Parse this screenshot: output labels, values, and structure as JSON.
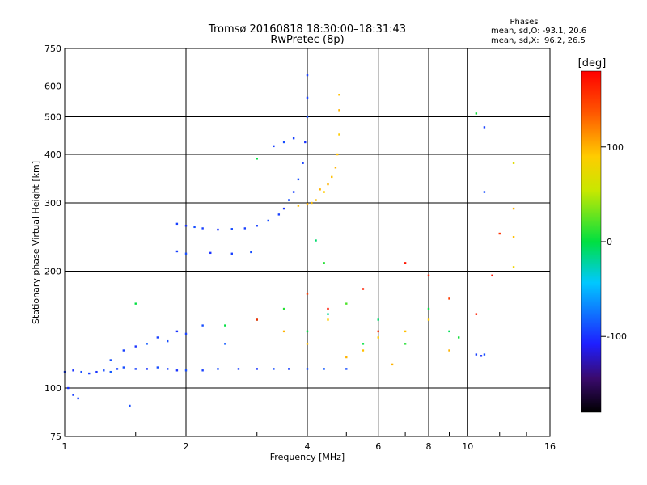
{
  "header": {
    "title": "Tromsø 20160818 18:30:00–18:31:43",
    "subtitle": "RwPretec (8p)"
  },
  "stats": {
    "title": "Phases",
    "line1": "mean, sd,O: -93.1, 20.6",
    "line2": "mean, sd,X:  96.2, 26.5"
  },
  "colorbar": {
    "unit_label": "[deg]",
    "ticks": [
      {
        "label": "100",
        "value": 100
      },
      {
        "label": "0",
        "value": 0
      },
      {
        "label": "-100",
        "value": -100
      }
    ]
  },
  "colors": {
    "gridline": "#000000",
    "o_mode": "#1030e0",
    "x_mode": "#e8e000"
  },
  "chart_data": {
    "type": "scatter",
    "xlabel": "Frequency [MHz]",
    "ylabel": "Stationary phase Virtual Height [km]",
    "x_scale": "log",
    "y_scale": "log",
    "xlim": [
      1,
      16
    ],
    "ylim": [
      75,
      750
    ],
    "grid": true,
    "x_ticks": [
      {
        "value": 1,
        "label": "1"
      },
      {
        "value": 2,
        "label": "2"
      },
      {
        "value": 4,
        "label": "4"
      },
      {
        "value": 6,
        "label": "6"
      },
      {
        "value": 8,
        "label": "8"
      },
      {
        "value": 10,
        "label": "10"
      },
      {
        "value": 16,
        "label": "16"
      }
    ],
    "y_ticks": [
      {
        "value": 75,
        "label": "75"
      },
      {
        "value": 100,
        "label": "100"
      },
      {
        "value": 200,
        "label": "200"
      },
      {
        "value": 300,
        "label": "300"
      },
      {
        "value": 400,
        "label": "400"
      },
      {
        "value": 500,
        "label": "500"
      },
      {
        "value": 600,
        "label": "600"
      },
      {
        "value": 750,
        "label": "750"
      }
    ],
    "colorbar_range": [
      -180,
      180
    ],
    "series": [
      {
        "points": [
          [
            1.0,
            110,
            -95
          ],
          [
            1.05,
            111,
            -100
          ],
          [
            1.1,
            110,
            -90
          ],
          [
            1.15,
            109,
            -95
          ],
          [
            1.2,
            110,
            -100
          ],
          [
            1.25,
            111,
            -90
          ],
          [
            1.3,
            110,
            -85
          ],
          [
            1.35,
            112,
            -95
          ],
          [
            1.4,
            113,
            -90
          ],
          [
            1.5,
            112,
            -95
          ],
          [
            1.6,
            112,
            -100
          ],
          [
            1.7,
            113,
            -90
          ],
          [
            1.8,
            112,
            -95
          ],
          [
            1.9,
            111,
            -100
          ],
          [
            2.0,
            111,
            -90
          ],
          [
            2.2,
            111,
            -95
          ],
          [
            2.4,
            112,
            -90
          ],
          [
            2.7,
            112,
            -95
          ],
          [
            3.0,
            112,
            -100
          ],
          [
            3.3,
            112,
            -90
          ],
          [
            3.6,
            112,
            -95
          ],
          [
            4.0,
            112,
            -90
          ],
          [
            4.4,
            112,
            -85
          ],
          [
            5.0,
            112,
            -90
          ],
          [
            1.02,
            100,
            -100
          ],
          [
            1.05,
            96,
            -95
          ],
          [
            1.08,
            94,
            -95
          ],
          [
            1.45,
            90,
            -90
          ],
          [
            1.3,
            118,
            -90
          ],
          [
            1.4,
            125,
            -95
          ],
          [
            1.5,
            128,
            -100
          ],
          [
            1.6,
            130,
            -85
          ],
          [
            1.7,
            135,
            -95
          ],
          [
            1.8,
            132,
            -90
          ],
          [
            1.9,
            140,
            -100
          ],
          [
            2.0,
            138,
            -95
          ],
          [
            2.2,
            145,
            -90
          ],
          [
            2.5,
            130,
            -85
          ],
          [
            1.9,
            265,
            -95
          ],
          [
            2.0,
            262,
            -100
          ],
          [
            2.1,
            260,
            -90
          ],
          [
            2.2,
            258,
            -95
          ],
          [
            2.4,
            256,
            -100
          ],
          [
            2.6,
            257,
            -90
          ],
          [
            2.8,
            258,
            -95
          ],
          [
            3.0,
            262,
            -95
          ],
          [
            3.2,
            270,
            -90
          ],
          [
            3.4,
            280,
            -95
          ],
          [
            3.5,
            290,
            -100
          ],
          [
            3.6,
            305,
            -90
          ],
          [
            3.7,
            320,
            -95
          ],
          [
            3.8,
            345,
            -90
          ],
          [
            3.9,
            380,
            -95
          ],
          [
            3.95,
            430,
            -100
          ],
          [
            4.0,
            500,
            -90
          ],
          [
            4.0,
            560,
            -95
          ],
          [
            4.0,
            640,
            -95
          ],
          [
            1.9,
            225,
            -95
          ],
          [
            2.0,
            222,
            -90
          ],
          [
            2.3,
            223,
            -100
          ],
          [
            2.6,
            222,
            -95
          ],
          [
            2.9,
            224,
            -90
          ],
          [
            3.3,
            420,
            -95
          ],
          [
            3.5,
            430,
            -90
          ],
          [
            3.7,
            440,
            -95
          ],
          [
            10.5,
            122,
            -95
          ],
          [
            10.8,
            121,
            -100
          ],
          [
            11.0,
            122,
            -90
          ],
          [
            11.0,
            470,
            -95
          ],
          [
            11.0,
            320,
            -90
          ]
        ]
      },
      {
        "points": [
          [
            3.8,
            295,
            95
          ],
          [
            4.0,
            298,
            100
          ],
          [
            4.2,
            305,
            95
          ],
          [
            4.4,
            320,
            90
          ],
          [
            4.5,
            335,
            100
          ],
          [
            4.6,
            350,
            95
          ],
          [
            4.7,
            370,
            100
          ],
          [
            4.75,
            400,
            95
          ],
          [
            4.8,
            450,
            90
          ],
          [
            4.8,
            520,
            100
          ],
          [
            4.8,
            570,
            95
          ],
          [
            4.3,
            325,
            100
          ],
          [
            4.1,
            300,
            95
          ],
          [
            3.5,
            140,
            100
          ],
          [
            4.0,
            130,
            95
          ],
          [
            4.5,
            150,
            90
          ],
          [
            5.0,
            120,
            100
          ],
          [
            5.5,
            125,
            95
          ],
          [
            6.0,
            135,
            90
          ],
          [
            6.5,
            115,
            100
          ],
          [
            7.0,
            140,
            95
          ],
          [
            8.0,
            150,
            90
          ],
          [
            9.0,
            125,
            100
          ],
          [
            13.0,
            290,
            100
          ],
          [
            13.0,
            245,
            95
          ],
          [
            13.0,
            380,
            70
          ],
          [
            13.0,
            205,
            80
          ]
        ]
      },
      {
        "points": [
          [
            2.5,
            145,
            0
          ],
          [
            3.0,
            150,
            -10
          ],
          [
            3.5,
            160,
            10
          ],
          [
            4.0,
            140,
            0
          ],
          [
            4.5,
            155,
            -20
          ],
          [
            5.0,
            165,
            20
          ],
          [
            5.5,
            130,
            0
          ],
          [
            6.0,
            150,
            -10
          ],
          [
            7.0,
            130,
            10
          ],
          [
            8.0,
            160,
            0
          ],
          [
            9.0,
            140,
            -5
          ],
          [
            9.5,
            135,
            5
          ],
          [
            1.5,
            165,
            0
          ],
          [
            4.2,
            240,
            -10
          ],
          [
            4.4,
            210,
            10
          ],
          [
            10.5,
            510,
            5
          ],
          [
            3.0,
            390,
            0
          ]
        ]
      },
      {
        "points": [
          [
            3.0,
            150,
            160
          ],
          [
            4.0,
            175,
            150
          ],
          [
            4.5,
            160,
            170
          ],
          [
            5.5,
            180,
            165
          ],
          [
            6.0,
            140,
            155
          ],
          [
            7.0,
            210,
            170
          ],
          [
            8.0,
            195,
            160
          ],
          [
            9.0,
            170,
            150
          ],
          [
            10.5,
            155,
            165
          ],
          [
            11.5,
            195,
            170
          ],
          [
            12.0,
            250,
            155
          ]
        ]
      }
    ]
  }
}
